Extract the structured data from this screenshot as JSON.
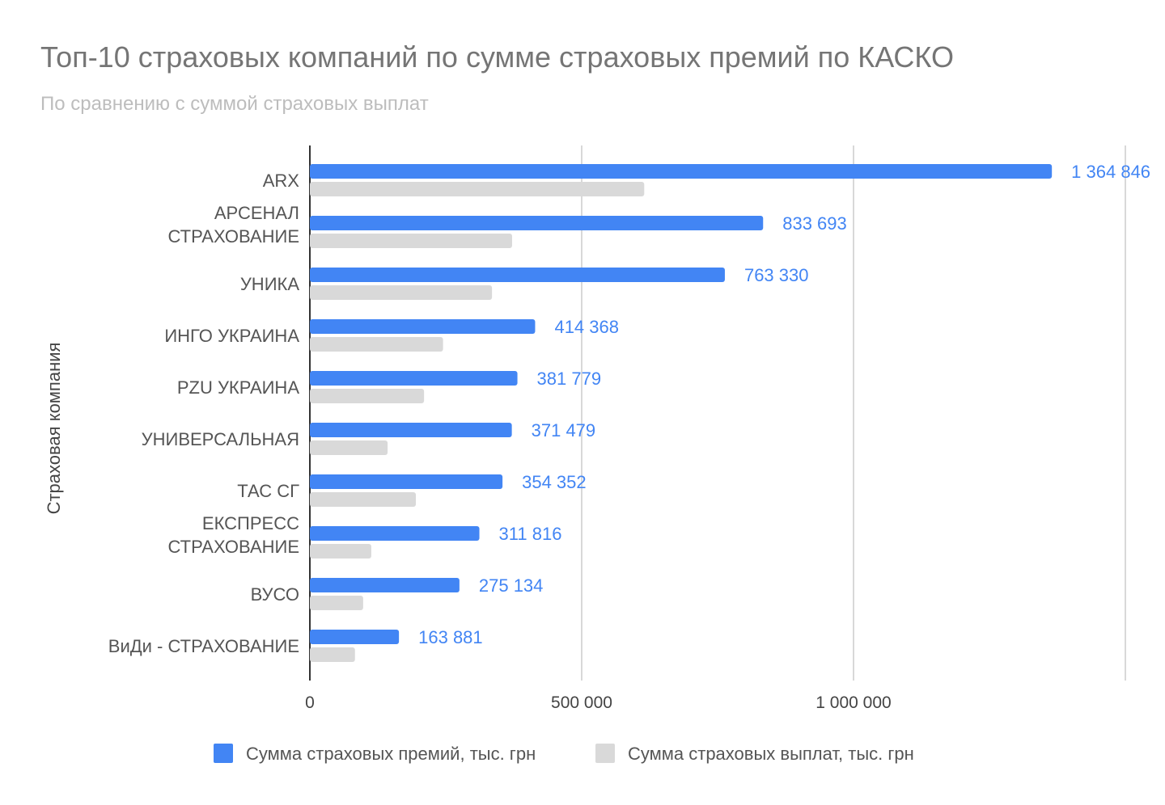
{
  "chart_data": {
    "type": "bar",
    "orientation": "horizontal",
    "title": "Топ-10 страховых компаний по сумме страховых премий по КАСКО",
    "subtitle": "По сравнению с суммой страховых выплат",
    "xlabel": "",
    "ylabel": "Страховая компания",
    "categories": [
      [
        "ARX"
      ],
      [
        "АРСЕНАЛ",
        "СТРАХОВАНИЕ"
      ],
      [
        "УНИКА"
      ],
      [
        "ИНГО УКРАИНА"
      ],
      [
        "PZU УКРАИНА"
      ],
      [
        "УНИВЕРСАЛЬНАЯ"
      ],
      [
        "ТАС СГ"
      ],
      [
        "ЕКСПРЕСС",
        "СТРАХОВАНИЕ"
      ],
      [
        "ВУСО"
      ],
      [
        "ВиДи - СТРАХОВАНИЕ"
      ]
    ],
    "series": [
      {
        "name": "Сумма страховых премий, тыс. грн",
        "color": "#4285f4",
        "values": [
          1364846,
          833693,
          763330,
          414368,
          381779,
          371479,
          354352,
          311816,
          275134,
          163881
        ],
        "data_labels": [
          "1 364 846",
          "833 693",
          "763 330",
          "414 368",
          "381 779",
          "371 479",
          "354 352",
          "311 816",
          "275 134",
          "163 881"
        ]
      },
      {
        "name": "Сумма страховых выплат, тыс. грн",
        "color": "#d9d9d9",
        "values": [
          615000,
          372000,
          335000,
          245000,
          210000,
          143000,
          195000,
          113000,
          98000,
          83000
        ]
      }
    ],
    "xlim": [
      0,
      1500000
    ],
    "xticks": [
      0,
      500000,
      1000000
    ],
    "xtick_labels": [
      "0",
      "500 000",
      "1 000 000"
    ],
    "grid": true,
    "legend_position": "bottom"
  }
}
